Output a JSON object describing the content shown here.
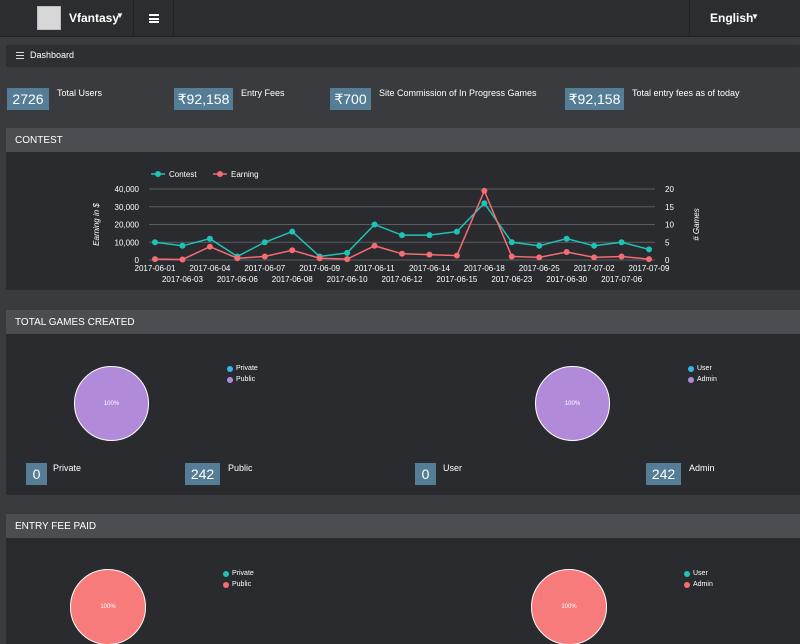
{
  "navbar": {
    "brand": "Vfantasy",
    "language": "English"
  },
  "breadcrumb": {
    "label": "Dashboard"
  },
  "stats": [
    {
      "value": "2726",
      "label": "Total Users"
    },
    {
      "value": "₹92,158",
      "label": "Entry Fees"
    },
    {
      "value": "₹700",
      "label": "Site Commission of In Progress Games"
    },
    {
      "value": "₹92,158",
      "label": "Total entry fees as of today"
    }
  ],
  "contest": {
    "title": "CONTEST"
  },
  "chart_data": {
    "type": "line",
    "categories": [
      "2017-06-01",
      "2017-06-03",
      "2017-06-04",
      "2017-06-06",
      "2017-06-07",
      "2017-06-08",
      "2017-06-09",
      "2017-06-10",
      "2017-06-11",
      "2017-06-12",
      "2017-06-14",
      "2017-06-15",
      "2017-06-18",
      "2017-06-23",
      "2017-06-25",
      "2017-06-30",
      "2017-07-02",
      "2017-07-06",
      "2017-07-09"
    ],
    "series": [
      {
        "name": "Contest",
        "axis": "right",
        "color": "#20c2b7",
        "values": [
          5,
          4,
          6,
          1,
          5,
          8,
          1,
          2,
          10,
          7,
          7,
          8,
          16,
          5,
          4,
          6,
          4,
          5,
          3
        ]
      },
      {
        "name": "Earning",
        "axis": "left",
        "color": "#f36d72",
        "values": [
          500,
          300,
          7500,
          1000,
          2000,
          5500,
          1000,
          500,
          8000,
          3500,
          3000,
          2500,
          39000,
          2000,
          1500,
          4500,
          1500,
          2000,
          500
        ]
      }
    ],
    "ylabel": "Earning in $",
    "y2label": "# Games",
    "ylim": [
      0,
      40000
    ],
    "y2lim": [
      0,
      20
    ],
    "yticks": [
      "0",
      "10,000",
      "20,000",
      "30,000",
      "40,000"
    ],
    "y2ticks": [
      "0",
      "5",
      "10",
      "15",
      "20"
    ],
    "legend": "top-left",
    "grid": true
  },
  "games": {
    "title": "TOTAL GAMES CREATED",
    "pie1": {
      "label": "100%",
      "color": "#b18ad9",
      "legend": [
        {
          "name": "Private",
          "color": "#36b8ea"
        },
        {
          "name": "Public",
          "color": "#b18ad9"
        }
      ]
    },
    "pie2": {
      "label": "100%",
      "color": "#b18ad9",
      "legend": [
        {
          "name": "User",
          "color": "#36b8ea"
        },
        {
          "name": "Admin",
          "color": "#b18ad9"
        }
      ]
    },
    "counts": [
      {
        "value": "0",
        "label": "Private"
      },
      {
        "value": "242",
        "label": "Public"
      },
      {
        "value": "0",
        "label": "User"
      },
      {
        "value": "242",
        "label": "Admin"
      }
    ]
  },
  "entry": {
    "title": "ENTRY FEE PAID",
    "pie1": {
      "label": "100%",
      "color": "#f77b7b",
      "legend": [
        {
          "name": "Private",
          "color": "#20c2b7"
        },
        {
          "name": "Public",
          "color": "#f36d72"
        }
      ]
    },
    "pie2": {
      "label": "100%",
      "color": "#f77b7b",
      "legend": [
        {
          "name": "User",
          "color": "#20c2b7"
        },
        {
          "name": "Admin",
          "color": "#f36d72"
        }
      ]
    }
  }
}
